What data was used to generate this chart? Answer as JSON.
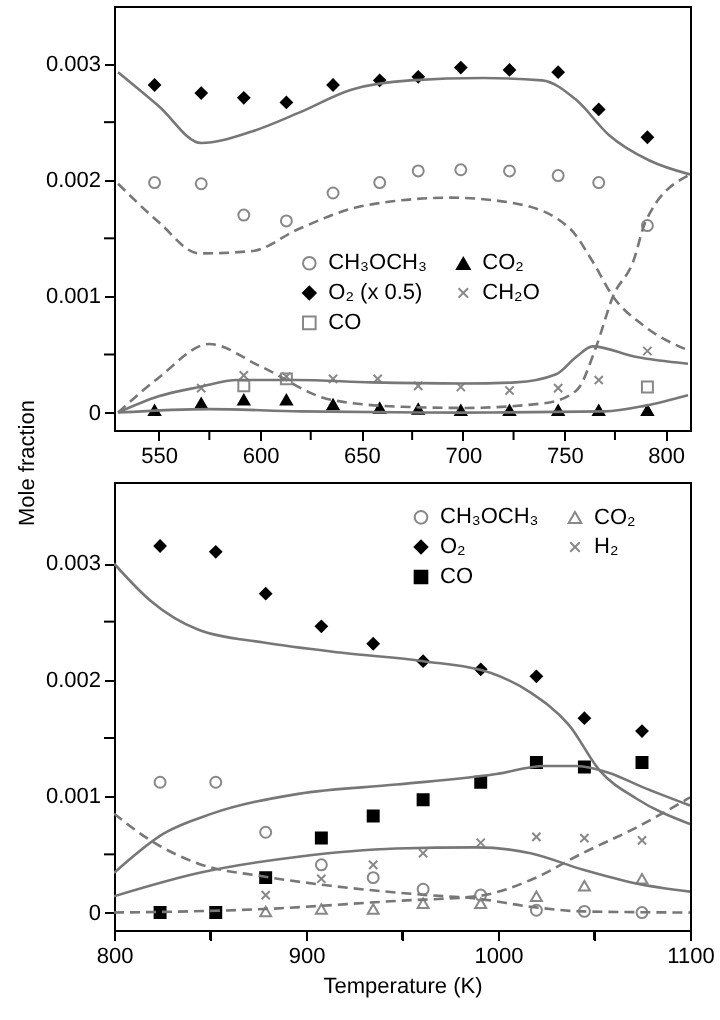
{
  "chart_data": [
    {
      "type": "scatter",
      "ylabel": "Mole fraction",
      "legend": "center",
      "grid": false,
      "xlim": [
        528,
        812
      ],
      "ylim": [
        -0.00015,
        0.0035
      ],
      "xticks": [
        550,
        {
          "value": 575,
          "label": null
        },
        600,
        {
          "value": 625,
          "label": null
        },
        650,
        {
          "value": 675,
          "label": null
        },
        700,
        {
          "value": 725,
          "label": null
        },
        750,
        {
          "value": 775,
          "label": null
        },
        800
      ],
      "yticks": [
        0,
        {
          "value": 0.0005,
          "label": null
        },
        0.001,
        {
          "value": 0.0015,
          "label": null
        },
        0.002,
        {
          "value": 0.0025,
          "label": null
        },
        0.003
      ],
      "series": [
        {
          "type": "line",
          "line_style": "solid",
          "marker": "none",
          "color": "#777777",
          "x": [
            530,
            550,
            571,
            596,
            619,
            645,
            674,
            710,
            739,
            756,
            772,
            792,
            812
          ],
          "values": [
            0.00293,
            0.00264,
            0.00232,
            0.00242,
            0.00258,
            0.00278,
            0.00286,
            0.00288,
            0.00286,
            0.00269,
            0.00239,
            0.00217,
            0.00205
          ]
        },
        {
          "type": "line",
          "line_style": "dashed",
          "marker": "none",
          "color": "#777777",
          "x": [
            530,
            550,
            570,
            596,
            619,
            651,
            694,
            726,
            753,
            764,
            774,
            789,
            812
          ],
          "values": [
            0.00197,
            0.00164,
            0.00137,
            0.00139,
            0.00158,
            0.00178,
            0.00185,
            0.0018,
            0.00158,
            0.0013,
            0.001,
            0.00075,
            0.00053
          ]
        },
        {
          "type": "line",
          "line_style": "dashed",
          "marker": "none",
          "color": "#777777",
          "x": [
            530,
            550,
            575,
            600,
            635,
            670,
            700,
            740,
            756,
            766,
            774,
            784,
            790,
            811
          ],
          "values": [
            0,
            0.0003,
            0.00059,
            0.0004,
            0.00011,
            5e-05,
            4e-05,
            8e-05,
            0.00019,
            0.00058,
            0.001,
            0.0013,
            0.00164,
            0.00204
          ]
        },
        {
          "type": "line",
          "line_style": "solid",
          "marker": "none",
          "color": "#777777",
          "x": [
            530,
            550,
            570,
            589,
            618,
            655,
            700,
            726,
            746,
            756,
            764,
            785,
            811
          ],
          "values": [
            0,
            0.00014,
            0.00022,
            0.00028,
            0.00028,
            0.00026,
            0.00025,
            0.00026,
            0.00033,
            0.00048,
            0.00057,
            0.00048,
            0.00042
          ]
        },
        {
          "type": "line",
          "line_style": "solid",
          "marker": "none",
          "color": "#777777",
          "x": [
            530,
            575,
            620,
            700,
            770,
            790,
            811
          ],
          "values": [
            0,
            3e-05,
            1e-05,
            0,
            1e-05,
            6e-05,
            0.00015
          ]
        },
        {
          "type": "scatter",
          "name": "CH₃OCH₃",
          "color": "#888888",
          "marker": "circle",
          "x": [
            548,
            571,
            592,
            613,
            636,
            659,
            678,
            699,
            723,
            747,
            767,
            791
          ],
          "values": [
            0.00198,
            0.00197,
            0.0017,
            0.00165,
            0.00189,
            0.00198,
            0.00208,
            0.00209,
            0.00208,
            0.00204,
            0.00198,
            0.00161
          ]
        },
        {
          "type": "scatter",
          "name": "O₂ (x 0.5)",
          "color": "#000000",
          "marker": "diamond",
          "x": [
            548,
            571,
            592,
            613,
            636,
            659,
            678,
            699,
            723,
            747,
            767,
            791
          ],
          "values": [
            0.00282,
            0.00275,
            0.00271,
            0.00267,
            0.00282,
            0.00286,
            0.00289,
            0.00297,
            0.00295,
            0.00293,
            0.00261,
            0.00237
          ]
        },
        {
          "type": "scatter",
          "name": "CO",
          "color": "#888888",
          "marker": "square",
          "x": [
            592,
            613,
            791
          ],
          "values": [
            0.00023,
            0.00029,
            0.00022
          ]
        },
        {
          "type": "scatter",
          "name": "CO₂",
          "color": "#000000",
          "marker": "triangle",
          "x": [
            548,
            571,
            592,
            613,
            636,
            659,
            678,
            699,
            723,
            747,
            767,
            791
          ],
          "values": [
            2e-05,
            8e-05,
            0.00011,
            0.00011,
            7e-05,
            4e-05,
            3e-05,
            2e-05,
            2e-05,
            2e-05,
            2e-05,
            2e-05
          ]
        },
        {
          "type": "scatter",
          "name": "CH₂O",
          "color": "#888888",
          "marker": "cross",
          "x": [
            571,
            592,
            613,
            636,
            658,
            678,
            699,
            723,
            747,
            767,
            791
          ],
          "values": [
            0.00021,
            0.00032,
            0.00031,
            0.00029,
            0.00029,
            0.00023,
            0.00022,
            0.00019,
            0.00021,
            0.00028,
            0.00053
          ]
        }
      ]
    },
    {
      "type": "scatter",
      "xlabel": "Temperature (K)",
      "legend": "top right",
      "grid": false,
      "xlim": [
        800,
        1100
      ],
      "ylim": [
        -0.00015,
        0.0037
      ],
      "xticks": [
        800,
        {
          "value": 850,
          "label": null
        },
        900,
        {
          "value": 950,
          "label": null
        },
        1000,
        {
          "value": 1050,
          "label": null
        },
        1100
      ],
      "yticks": [
        0,
        {
          "value": 0.0005,
          "label": null
        },
        0.001,
        {
          "value": 0.0015,
          "label": null
        },
        0.002,
        {
          "value": 0.0025,
          "label": null
        },
        0.003
      ],
      "series": [
        {
          "type": "line",
          "line_style": "solid",
          "marker": "none",
          "color": "#777777",
          "x": [
            800,
            819,
            844,
            878,
            920,
            961,
            996,
            1017,
            1037,
            1053,
            1072,
            1100
          ],
          "values": [
            0.003,
            0.00268,
            0.00243,
            0.00232,
            0.00223,
            0.00216,
            0.00206,
            0.00189,
            0.00161,
            0.00122,
            0.00098,
            0.00076
          ]
        },
        {
          "type": "line",
          "line_style": "solid",
          "marker": "none",
          "color": "#777777",
          "x": [
            800,
            826,
            851,
            896,
            947,
            999,
            1024,
            1041,
            1058,
            1075,
            1100
          ],
          "values": [
            0.00034,
            0.00068,
            0.00085,
            0.00102,
            0.0011,
            0.00119,
            0.00126,
            0.00126,
            0.0012,
            0.00108,
            0.00092
          ]
        },
        {
          "type": "line",
          "line_style": "solid",
          "marker": "none",
          "color": "#777777",
          "x": [
            800,
            844,
            896,
            947,
            989,
            1017,
            1044,
            1072,
            1100
          ],
          "values": [
            0.00014,
            0.00034,
            0.00048,
            0.00055,
            0.00056,
            0.00051,
            0.00037,
            0.00025,
            0.00018
          ]
        },
        {
          "type": "line",
          "line_style": "dashed",
          "marker": "none",
          "color": "#777777",
          "x": [
            800,
            819,
            844,
            878,
            913,
            963,
            989,
            1017,
            1044,
            1100
          ],
          "values": [
            0.00085,
            0.00062,
            0.00042,
            0.00031,
            0.00023,
            0.00015,
            0.00012,
            5e-05,
            1e-05,
            0
          ]
        },
        {
          "type": "line",
          "line_style": "dashed",
          "marker": "none",
          "color": "#777777",
          "x": [
            800,
            878,
            947,
            989,
            1017,
            1044,
            1072,
            1100
          ],
          "values": [
            0,
            3e-05,
            0.0001,
            0.00014,
            0.00028,
            0.00051,
            0.00073,
            0.00099
          ]
        },
        {
          "type": "scatter",
          "name": "CH₃OCH₃",
          "color": "#888888",
          "marker": "circle",
          "x": [
            824,
            853,
            879,
            908,
            935,
            961,
            991,
            1020,
            1045,
            1075
          ],
          "values": [
            0.00112,
            0.00112,
            0.00069,
            0.00041,
            0.0003,
            0.0002,
            0.00015,
            2e-05,
            1e-05,
            0
          ]
        },
        {
          "type": "scatter",
          "name": "O₂",
          "color": "#000000",
          "marker": "diamond",
          "x": [
            824,
            853,
            879,
            908,
            935,
            961,
            991,
            1020,
            1045,
            1075
          ],
          "values": [
            0.00315,
            0.0031,
            0.00274,
            0.00246,
            0.00231,
            0.00216,
            0.00209,
            0.00203,
            0.00167,
            0.00156
          ]
        },
        {
          "type": "scatter",
          "name": "CO",
          "color": "#000000",
          "marker": "square",
          "x": [
            824,
            853,
            879,
            908,
            935,
            961,
            991,
            1020,
            1045,
            1075
          ],
          "values": [
            0,
            0,
            0.0003,
            0.00064,
            0.00083,
            0.00097,
            0.00112,
            0.00129,
            0.00125,
            0.00129
          ]
        },
        {
          "type": "scatter",
          "name": "CO₂",
          "color": "#888888",
          "marker": "triangle",
          "x": [
            879,
            908,
            935,
            961,
            991,
            1020,
            1045,
            1075
          ],
          "values": [
            1e-05,
            3e-05,
            3e-05,
            8e-05,
            8e-05,
            0.00014,
            0.00023,
            0.00029
          ]
        },
        {
          "type": "scatter",
          "name": "H₂",
          "color": "#888888",
          "marker": "cross",
          "x": [
            879,
            908,
            935,
            961,
            991,
            1020,
            1045,
            1075
          ],
          "values": [
            0.00015,
            0.00029,
            0.00041,
            0.00051,
            0.0006,
            0.00065,
            0.00064,
            0.00062
          ]
        }
      ]
    }
  ]
}
